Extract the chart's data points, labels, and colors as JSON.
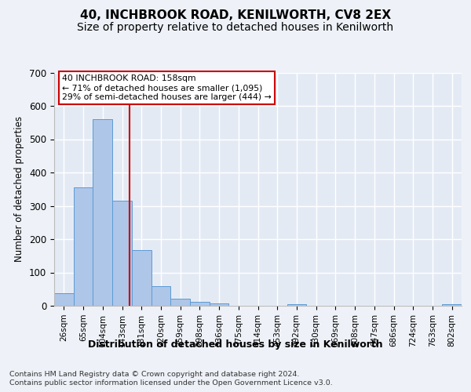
{
  "title": "40, INCHBROOK ROAD, KENILWORTH, CV8 2EX",
  "subtitle": "Size of property relative to detached houses in Kenilworth",
  "xlabel": "Distribution of detached houses by size in Kenilworth",
  "ylabel": "Number of detached properties",
  "categories": [
    "26sqm",
    "65sqm",
    "104sqm",
    "143sqm",
    "181sqm",
    "220sqm",
    "259sqm",
    "298sqm",
    "336sqm",
    "375sqm",
    "414sqm",
    "453sqm",
    "492sqm",
    "530sqm",
    "569sqm",
    "608sqm",
    "647sqm",
    "686sqm",
    "724sqm",
    "763sqm",
    "802sqm"
  ],
  "values": [
    38,
    355,
    560,
    315,
    168,
    60,
    22,
    11,
    6,
    0,
    0,
    0,
    5,
    0,
    0,
    0,
    0,
    0,
    0,
    0,
    5
  ],
  "bar_color": "#aec6e8",
  "bar_edge_color": "#5b9bd5",
  "vline_color": "#cc0000",
  "annotation_text": "40 INCHBROOK ROAD: 158sqm\n← 71% of detached houses are smaller (1,095)\n29% of semi-detached houses are larger (444) →",
  "annotation_box_color": "#ffffff",
  "annotation_box_edge": "#cc0000",
  "footer1": "Contains HM Land Registry data © Crown copyright and database right 2024.",
  "footer2": "Contains public sector information licensed under the Open Government Licence v3.0.",
  "ylim": [
    0,
    700
  ],
  "yticks": [
    0,
    100,
    200,
    300,
    400,
    500,
    600,
    700
  ],
  "bg_color": "#eef2f8",
  "plot_bg_color": "#e4eaf4",
  "grid_color": "#ffffff",
  "title_fontsize": 11,
  "subtitle_fontsize": 10
}
